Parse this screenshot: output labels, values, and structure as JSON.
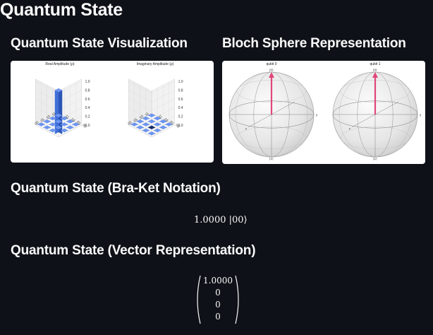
{
  "page": {
    "title": "Quantum State"
  },
  "sections": {
    "state_viz": "Quantum State Visualization",
    "bloch": "Bloch Sphere Representation",
    "braket": "Quantum State (Bra-Ket Notation)",
    "vector": "Quantum State (Vector Representation)"
  },
  "plots": {
    "real_title": "Real Amplitude (ρ)",
    "imag_title": "Imaginary Amplitude (ρ)",
    "z_ticks": [
      "1.0",
      "0.8",
      "0.6",
      "0.4",
      "0.2",
      "0.0"
    ],
    "basis_labels": [
      "00",
      "01",
      "10",
      "11"
    ],
    "real_values": [
      [
        1,
        0,
        0,
        0
      ],
      [
        0,
        0,
        0,
        0
      ],
      [
        0,
        0,
        0,
        0
      ],
      [
        0,
        0,
        0,
        0
      ]
    ],
    "imag_values": [
      [
        0,
        0,
        0,
        0
      ],
      [
        0,
        0,
        0,
        0
      ],
      [
        0,
        0,
        0,
        0
      ],
      [
        0,
        0,
        0,
        0
      ]
    ]
  },
  "bloch": {
    "spheres": [
      {
        "title": "qubit 0",
        "top": "|0⟩",
        "bottom": "|1⟩",
        "x": "x",
        "y": "y"
      },
      {
        "title": "qubit 1",
        "top": "|0⟩",
        "bottom": "|1⟩",
        "x": "x",
        "y": "y"
      }
    ],
    "vector_color": "#e0467c"
  },
  "braket": {
    "expression": "1.0000 |00⟩"
  },
  "vector": {
    "entries": [
      "1.0000",
      "0",
      "0",
      "0"
    ]
  }
}
